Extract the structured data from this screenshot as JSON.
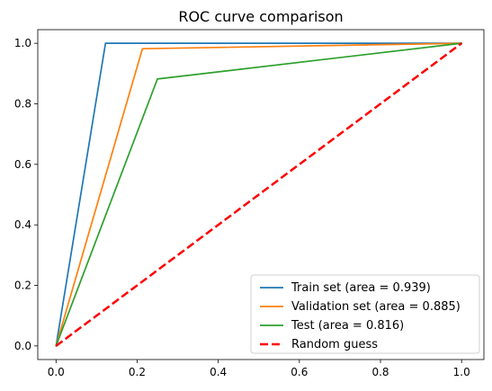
{
  "chart_data": {
    "type": "line",
    "title": "ROC curve comparison",
    "xlabel": "",
    "ylabel": "",
    "xlim": [
      -0.045,
      1.055
    ],
    "ylim": [
      -0.045,
      1.045
    ],
    "xticks": [
      0.0,
      0.2,
      0.4,
      0.6,
      0.8,
      1.0
    ],
    "yticks": [
      0.0,
      0.2,
      0.4,
      0.6,
      0.8,
      1.0
    ],
    "xtick_labels": [
      "0.0",
      "0.2",
      "0.4",
      "0.6",
      "0.8",
      "1.0"
    ],
    "ytick_labels": [
      "0.0",
      "0.2",
      "0.4",
      "0.6",
      "0.8",
      "1.0"
    ],
    "grid": false,
    "legend_position": "lower-right",
    "series": [
      {
        "name": "Train set (area = 0.939)",
        "color": "#1f77b4",
        "dash": "solid",
        "x": [
          0.0,
          0.122,
          1.0
        ],
        "y": [
          0.0,
          1.0,
          1.0
        ]
      },
      {
        "name": "Validation set (area = 0.885)",
        "color": "#ff7f0e",
        "dash": "solid",
        "x": [
          0.0,
          0.213,
          1.0
        ],
        "y": [
          0.0,
          0.982,
          1.0
        ]
      },
      {
        "name": "Test (area = 0.816)",
        "color": "#2ca02c",
        "dash": "solid",
        "x": [
          0.0,
          0.25,
          1.0
        ],
        "y": [
          0.0,
          0.882,
          1.0
        ]
      },
      {
        "name": "Random guess",
        "color": "#ff0000",
        "dash": "dashed",
        "x": [
          0.0,
          1.0
        ],
        "y": [
          0.0,
          1.0
        ]
      }
    ]
  }
}
